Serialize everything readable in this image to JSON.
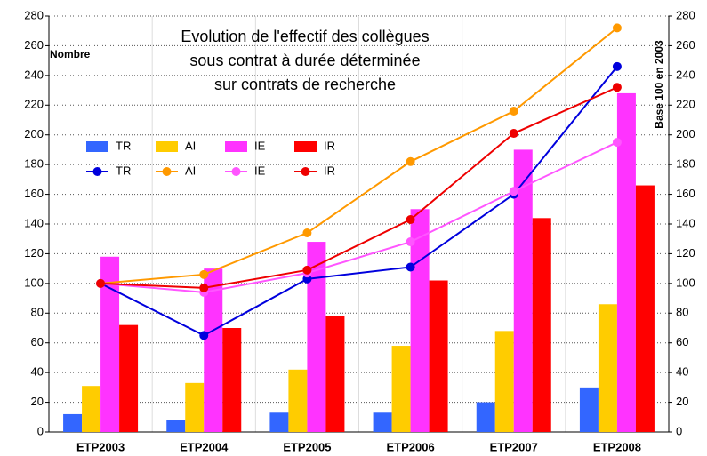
{
  "chart_data": {
    "type": "bar",
    "title": [
      "Evolution de l'effectif des collègues",
      "sous contrat à durée déterminée",
      "sur contrats de recherche"
    ],
    "y_label": "Nombre",
    "y2_label": "Base 100 en 2003",
    "categories": [
      "ETP2003",
      "ETP2004",
      "ETP2005",
      "ETP2006",
      "ETP2007",
      "ETP2008"
    ],
    "ylim": [
      0,
      280
    ],
    "yticks": [
      0,
      20,
      40,
      60,
      80,
      100,
      120,
      140,
      160,
      180,
      200,
      220,
      240,
      260,
      280
    ],
    "y2lim": [
      0,
      280
    ],
    "y2ticks": [
      0,
      20,
      40,
      60,
      80,
      100,
      120,
      140,
      160,
      180,
      200,
      220,
      240,
      260,
      280
    ],
    "grid": true,
    "series": [
      {
        "name": "TR",
        "type": "bar",
        "color": "#3366ff",
        "values": [
          12,
          8,
          13,
          13,
          20,
          30
        ]
      },
      {
        "name": "AI",
        "type": "bar",
        "color": "#ffcc00",
        "values": [
          31,
          33,
          42,
          58,
          68,
          86
        ]
      },
      {
        "name": "IE",
        "type": "bar",
        "color": "#ff33ff",
        "values": [
          118,
          110,
          128,
          150,
          190,
          228
        ]
      },
      {
        "name": "IR",
        "type": "bar",
        "color": "#ff0000",
        "values": [
          72,
          70,
          78,
          102,
          144,
          166
        ]
      },
      {
        "name": "TR",
        "type": "line",
        "axis": "y2",
        "color": "#0000dd",
        "values": [
          100,
          65,
          103,
          111,
          160,
          246
        ]
      },
      {
        "name": "AI",
        "type": "line",
        "axis": "y2",
        "color": "#ff9900",
        "values": [
          100,
          106,
          134,
          182,
          216,
          272
        ]
      },
      {
        "name": "IE",
        "type": "line",
        "axis": "y2",
        "color": "#ff55ff",
        "values": [
          100,
          94,
          107,
          128,
          162,
          195
        ]
      },
      {
        "name": "IR",
        "type": "line",
        "axis": "y2",
        "color": "#ee0000",
        "values": [
          100,
          97,
          109,
          143,
          201,
          232
        ]
      }
    ]
  }
}
